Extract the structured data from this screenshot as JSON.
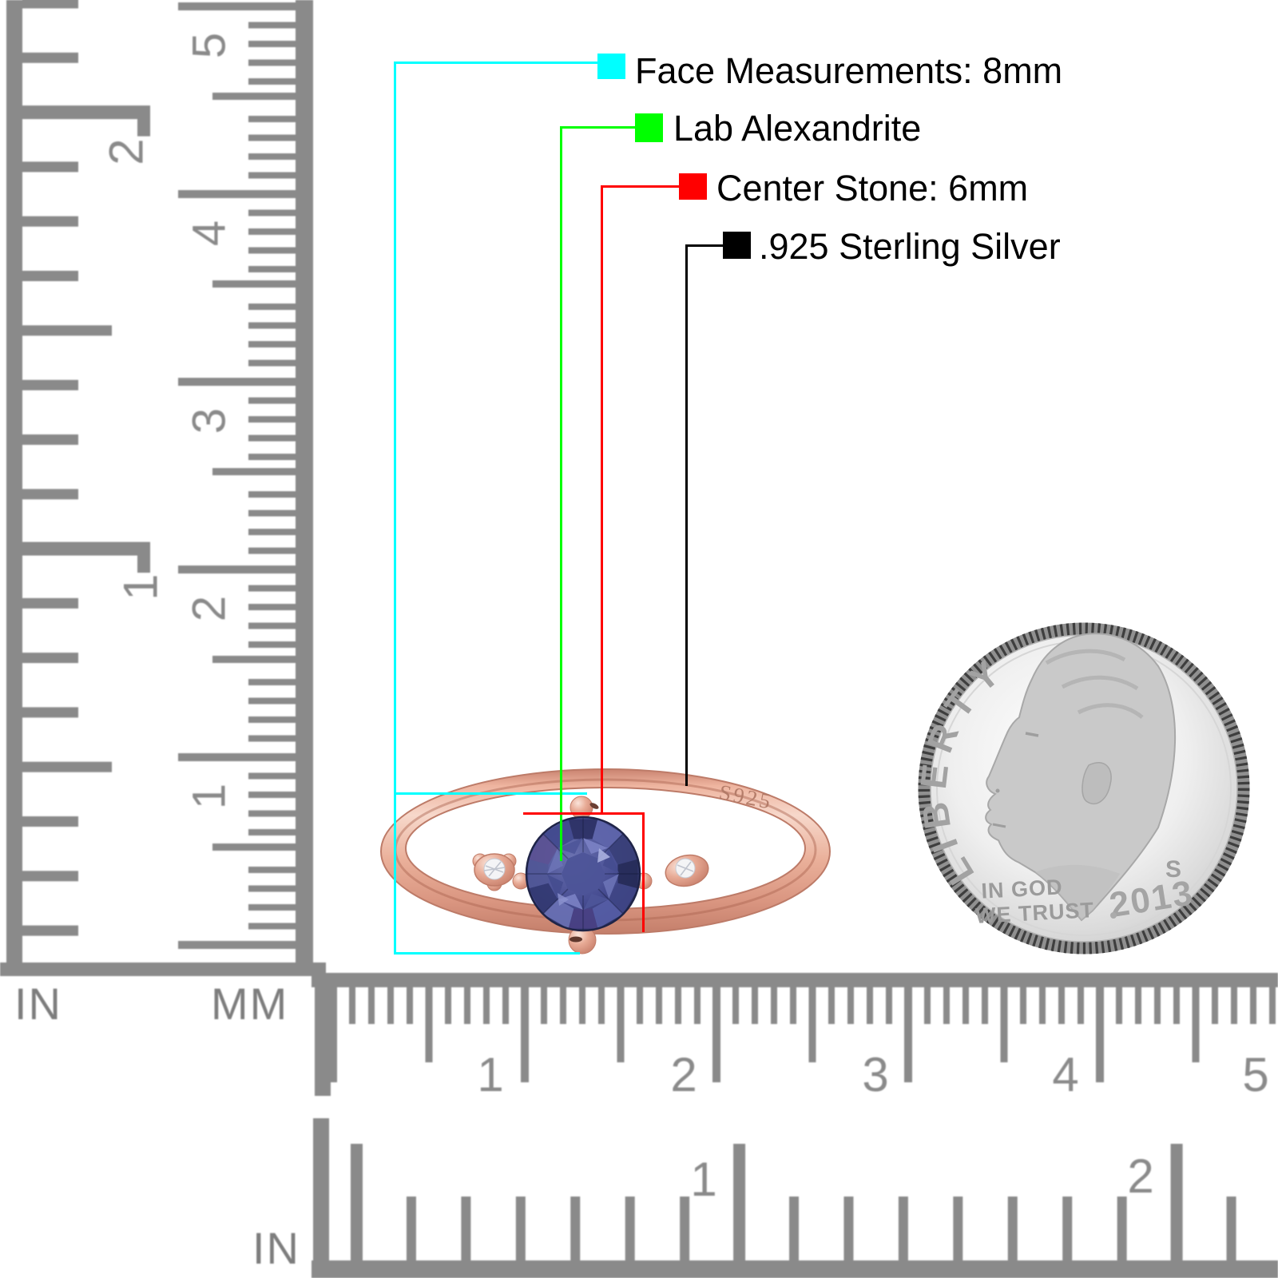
{
  "callouts": {
    "face": {
      "label": "Face Measurements: 8mm",
      "color": "#00ffff"
    },
    "stone_type": {
      "label": "Lab Alexandrite",
      "color": "#00ff00"
    },
    "center_stone": {
      "label": "Center Stone: 6mm",
      "color": "#ff0000"
    },
    "metal": {
      "label": ".925 Sterling Silver",
      "color": "#000000"
    }
  },
  "ring": {
    "engraving": "S925"
  },
  "coin": {
    "legend": "LIBERTY",
    "motto_line1": "IN GOD",
    "motto_line2": "WE TRUST",
    "year": "2013",
    "mint_mark": "S"
  },
  "rulers": {
    "left_inch": {
      "unit": "IN",
      "numbers": [
        "2",
        "1"
      ]
    },
    "left_mm": {
      "unit": "MM",
      "numbers": [
        "5",
        "4",
        "3",
        "2",
        "1"
      ]
    },
    "bottom_mm": {
      "numbers": [
        "1",
        "2",
        "3",
        "4",
        "5"
      ]
    },
    "bottom_inch": {
      "unit": "IN",
      "numbers": [
        "1",
        "2"
      ]
    }
  },
  "colors": {
    "ruler_gray": "#8a8a8a",
    "rose_gold": "#e8a892",
    "stone_blue": "#3d4383",
    "coin_silver": "#d9d9d9"
  }
}
